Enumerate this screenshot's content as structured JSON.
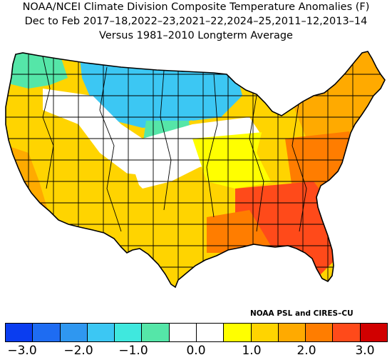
{
  "title": {
    "line1": "NOAA/NCEI Climate Division Composite Temperature Anomalies (F)",
    "line2": "Dec to Feb  2017–18,2022–23,2021–22,2024–25,2011–12,2013–14",
    "line3": "Versus 1981–2010 Longterm Average"
  },
  "credit": "NOAA PSL and CIRES–CU",
  "legend": {
    "colors": [
      "#0a3df0",
      "#1e6cf2",
      "#2f97f0",
      "#3cc7f3",
      "#3fe8de",
      "#55e6a8",
      "#ffffff",
      "#ffffff",
      "#ffff00",
      "#ffd400",
      "#ffaa00",
      "#ff7d00",
      "#ff4a1a",
      "#d10000"
    ],
    "ticks": [
      "−3.0",
      "−2.0",
      "−1.0",
      "0.0",
      "1.0",
      "2.0",
      "3.0"
    ]
  },
  "map": {
    "regions": [
      {
        "name": "far-northwest",
        "color": "#55e6a8"
      },
      {
        "name": "northern-plains",
        "color": "#3cc7f3"
      },
      {
        "name": "upper-midwest",
        "color": "#3cc7f3"
      },
      {
        "name": "central-plains",
        "color": "#55e6a8"
      },
      {
        "name": "interior-west",
        "color": "#ffffff"
      },
      {
        "name": "great-basin",
        "color": "#ffd400"
      },
      {
        "name": "california",
        "color": "#ffaa00"
      },
      {
        "name": "southwest",
        "color": "#ffd400"
      },
      {
        "name": "texas",
        "color": "#ffd400"
      },
      {
        "name": "midwest",
        "color": "#ffff00"
      },
      {
        "name": "ohio-valley",
        "color": "#ffd400"
      },
      {
        "name": "northeast",
        "color": "#ffaa00"
      },
      {
        "name": "mid-atlantic",
        "color": "#ff7d00"
      },
      {
        "name": "southeast",
        "color": "#ff4a1a"
      },
      {
        "name": "gulf-coast",
        "color": "#ff7d00"
      }
    ]
  }
}
